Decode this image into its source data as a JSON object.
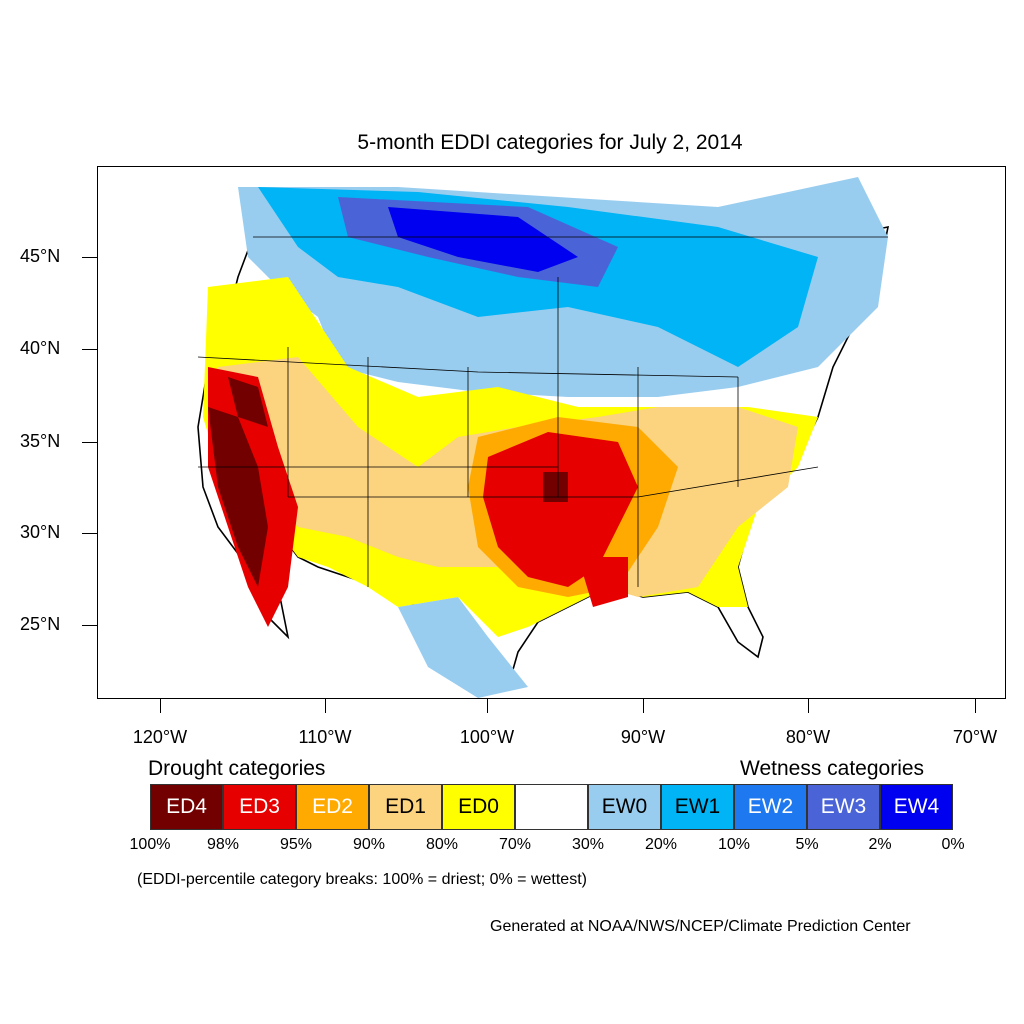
{
  "title": "5-month EDDI categories for July 2, 2014",
  "axes": {
    "lat_labels": [
      "45°N",
      "40°N",
      "35°N",
      "30°N",
      "25°N"
    ],
    "lon_labels": [
      "120°W",
      "110°W",
      "100°W",
      "90°W",
      "80°W",
      "70°W"
    ]
  },
  "legend": {
    "drought_heading": "Drought categories",
    "wetness_heading": "Wetness categories",
    "categories": [
      {
        "label": "ED4",
        "color": "#730000",
        "text_color": "#ffffff"
      },
      {
        "label": "ED3",
        "color": "#e60000",
        "text_color": "#ffffff"
      },
      {
        "label": "ED2",
        "color": "#ffaa00",
        "text_color": "#ffffff"
      },
      {
        "label": "ED1",
        "color": "#fcd37f",
        "text_color": "#000000"
      },
      {
        "label": "ED0",
        "color": "#ffff00",
        "text_color": "#000000"
      },
      {
        "label": "",
        "color": "#ffffff",
        "text_color": "#000000"
      },
      {
        "label": "EW0",
        "color": "#98cdf0",
        "text_color": "#000000"
      },
      {
        "label": "EW1",
        "color": "#00b4f5",
        "text_color": "#000000"
      },
      {
        "label": "EW2",
        "color": "#1e78f0",
        "text_color": "#ffffff"
      },
      {
        "label": "EW3",
        "color": "#4a64d8",
        "text_color": "#ffffff"
      },
      {
        "label": "EW4",
        "color": "#0000f0",
        "text_color": "#ffffff"
      }
    ],
    "percentiles": [
      "100%",
      "98%",
      "95%",
      "90%",
      "80%",
      "70%",
      "30%",
      "20%",
      "10%",
      "5%",
      "2%",
      "0%"
    ]
  },
  "note": "(EDDI-percentile category breaks: 100% = driest; 0% = wettest)",
  "credit": "Generated at NOAA/NWS/NCEP/Climate Prediction Center"
}
